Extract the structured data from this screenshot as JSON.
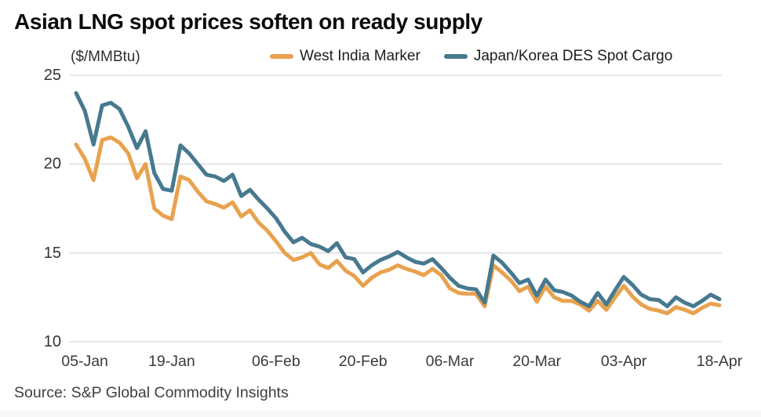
{
  "title": "Asian LNG spot prices soften on ready supply",
  "unit_label": "($/MMBtu)",
  "source": "Source: S&P Global Commodity Insights",
  "colors": {
    "wim_orange": "#E8A24E",
    "jkm_blue": "#47798F",
    "gridline": "#DBDBDB",
    "title_text": "#0B0B0B",
    "axis_text": "#3A3A3A",
    "source_text": "#3F3F3F",
    "background": "#FFFFFF"
  },
  "chart_data": {
    "type": "line",
    "title": "Asian LNG spot prices soften on ready supply",
    "ylabel": "($/MMBtu)",
    "xlabel": "",
    "ylim": [
      10,
      25
    ],
    "yticks": [
      25,
      20,
      15,
      10
    ],
    "grid": "horizontal",
    "legend_position": "top",
    "x_tick_labels": [
      "05-Jan",
      "19-Jan",
      "06-Feb",
      "20-Feb",
      "06-Mar",
      "20-Mar",
      "03-Apr",
      "18-Apr"
    ],
    "x_tick_indices": [
      1,
      11,
      23,
      33,
      43,
      53,
      63,
      74
    ],
    "dates": [
      "04-Jan",
      "05-Jan",
      "06-Jan",
      "09-Jan",
      "10-Jan",
      "11-Jan",
      "12-Jan",
      "13-Jan",
      "16-Jan",
      "17-Jan",
      "18-Jan",
      "19-Jan",
      "20-Jan",
      "23-Jan",
      "24-Jan",
      "25-Jan",
      "26-Jan",
      "27-Jan",
      "30-Jan",
      "31-Jan",
      "01-Feb",
      "02-Feb",
      "03-Feb",
      "06-Feb",
      "07-Feb",
      "08-Feb",
      "09-Feb",
      "10-Feb",
      "13-Feb",
      "14-Feb",
      "15-Feb",
      "16-Feb",
      "17-Feb",
      "20-Feb",
      "21-Feb",
      "22-Feb",
      "23-Feb",
      "24-Feb",
      "27-Feb",
      "28-Feb",
      "01-Mar",
      "02-Mar",
      "03-Mar",
      "06-Mar",
      "07-Mar",
      "08-Mar",
      "09-Mar",
      "10-Mar",
      "13-Mar",
      "14-Mar",
      "15-Mar",
      "16-Mar",
      "17-Mar",
      "20-Mar",
      "21-Mar",
      "22-Mar",
      "23-Mar",
      "24-Mar",
      "27-Mar",
      "28-Mar",
      "29-Mar",
      "30-Mar",
      "31-Mar",
      "03-Apr",
      "04-Apr",
      "05-Apr",
      "06-Apr",
      "07-Apr",
      "10-Apr",
      "11-Apr",
      "12-Apr",
      "13-Apr",
      "14-Apr",
      "17-Apr",
      "18-Apr"
    ],
    "series": [
      {
        "name": "West India Marker",
        "color": "#E8A24E",
        "values": [
          21.1,
          20.3,
          19.1,
          21.35,
          21.5,
          21.2,
          20.6,
          19.2,
          20.0,
          17.5,
          17.1,
          16.9,
          19.3,
          19.1,
          18.45,
          17.9,
          17.75,
          17.55,
          17.85,
          17.05,
          17.4,
          16.7,
          16.25,
          15.65,
          15.0,
          14.6,
          14.75,
          15.0,
          14.35,
          14.15,
          14.55,
          14.0,
          13.7,
          13.15,
          13.6,
          13.9,
          14.05,
          14.3,
          14.1,
          13.95,
          13.75,
          14.1,
          13.75,
          13.0,
          12.75,
          12.7,
          12.7,
          12.0,
          14.3,
          13.9,
          13.45,
          12.85,
          13.1,
          12.25,
          13.1,
          12.5,
          12.3,
          12.3,
          12.1,
          11.75,
          12.3,
          11.8,
          12.5,
          13.15,
          12.55,
          12.1,
          11.85,
          11.75,
          11.6,
          11.95,
          11.8,
          11.6,
          11.9,
          12.15,
          12.05
        ]
      },
      {
        "name": "Japan/Korea DES Spot Cargo",
        "color": "#47798F",
        "values": [
          24.0,
          23.0,
          21.1,
          23.3,
          23.45,
          23.1,
          22.1,
          20.9,
          21.85,
          19.5,
          18.6,
          18.5,
          21.05,
          20.6,
          20.0,
          19.4,
          19.3,
          19.05,
          19.4,
          18.2,
          18.55,
          18.0,
          17.5,
          16.95,
          16.2,
          15.6,
          15.85,
          15.5,
          15.35,
          15.1,
          15.55,
          14.75,
          14.65,
          13.9,
          14.3,
          14.6,
          14.8,
          15.05,
          14.75,
          14.5,
          14.4,
          14.65,
          14.15,
          13.6,
          13.15,
          13.0,
          12.95,
          12.2,
          14.85,
          14.45,
          13.9,
          13.3,
          13.5,
          12.6,
          13.5,
          12.9,
          12.8,
          12.6,
          12.25,
          12.0,
          12.75,
          12.1,
          12.9,
          13.65,
          13.2,
          12.65,
          12.4,
          12.35,
          12.0,
          12.5,
          12.2,
          12.0,
          12.3,
          12.65,
          12.4
        ]
      }
    ]
  }
}
